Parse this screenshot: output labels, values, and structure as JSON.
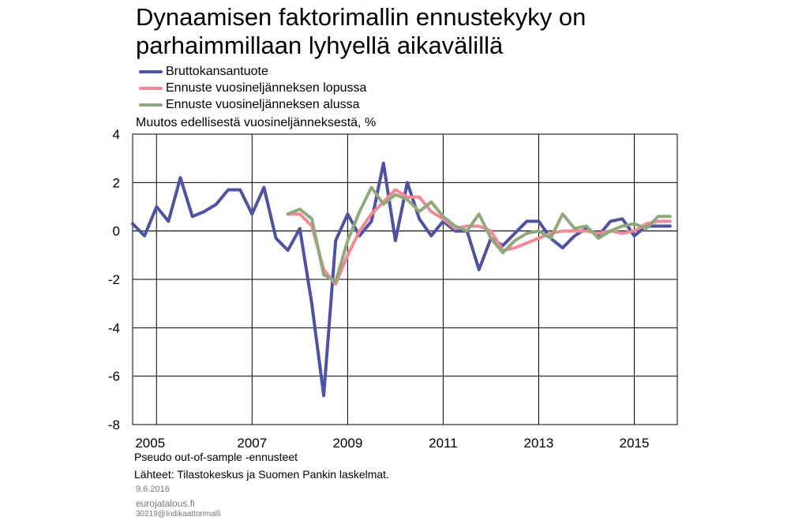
{
  "title_lines": [
    "Dynaamisen faktorimallin ennustekyky on",
    "parhaimmillaan lyhyellä aikavälillä"
  ],
  "footer": {
    "note": "Pseudo out-of-sample -ennusteet",
    "source": "Lähteet: Tilastokeskus ja Suomen Pankin laskelmat.",
    "date": "9.6.2016",
    "site": "eurojatalous.fi",
    "code": "30219@Indikaattorimalli"
  },
  "chart_data": {
    "type": "line",
    "title": "Dynaamisen faktorimallin ennustekyky on parhaimmillaan lyhyellä aikavälillä",
    "ylabel": "Muutos edellisestä vuosineljänneksestä, %",
    "xlabel": "",
    "ylim": [
      -8,
      4
    ],
    "yticks": [
      4,
      2,
      0,
      -2,
      -4,
      -6,
      -8
    ],
    "xlim": [
      2004.5,
      2015.9
    ],
    "xticks": [
      2005,
      2007,
      2009,
      2011,
      2013,
      2015
    ],
    "xtick_labels": [
      "2005",
      "2007",
      "2009",
      "2011",
      "2013",
      "2015"
    ],
    "grid": true,
    "legend_position": "top-left",
    "series": [
      {
        "name": "Bruttokansantuote",
        "color": "#4f52a3",
        "x": [
          2004.5,
          2004.75,
          2005.0,
          2005.25,
          2005.5,
          2005.75,
          2006.0,
          2006.25,
          2006.5,
          2006.75,
          2007.0,
          2007.25,
          2007.5,
          2007.75,
          2008.0,
          2008.25,
          2008.5,
          2008.75,
          2009.0,
          2009.25,
          2009.5,
          2009.75,
          2010.0,
          2010.25,
          2010.5,
          2010.75,
          2011.0,
          2011.25,
          2011.5,
          2011.75,
          2012.0,
          2012.25,
          2012.5,
          2012.75,
          2013.0,
          2013.25,
          2013.5,
          2013.75,
          2014.0,
          2014.25,
          2014.5,
          2014.75,
          2015.0,
          2015.25,
          2015.5,
          2015.75
        ],
        "y": [
          0.3,
          -0.2,
          1.0,
          0.4,
          2.2,
          0.6,
          0.8,
          1.1,
          1.7,
          1.7,
          0.7,
          1.8,
          -0.3,
          -0.8,
          0.1,
          -3.0,
          -6.8,
          -0.4,
          0.7,
          -0.2,
          0.4,
          2.8,
          -0.4,
          2.0,
          0.5,
          -0.2,
          0.4,
          0.0,
          0.0,
          -1.6,
          -0.3,
          -0.6,
          -0.1,
          0.4,
          0.4,
          -0.3,
          -0.7,
          -0.2,
          0.1,
          -0.2,
          0.4,
          0.5,
          -0.2,
          0.2,
          0.2,
          0.2
        ]
      },
      {
        "name": "Ennuste vuosineljänneksen lopussa",
        "color": "#f08a95",
        "x": [
          2007.75,
          2008.0,
          2008.25,
          2008.5,
          2008.75,
          2009.0,
          2009.25,
          2009.5,
          2009.75,
          2010.0,
          2010.25,
          2010.5,
          2010.75,
          2011.0,
          2011.25,
          2011.5,
          2011.75,
          2012.0,
          2012.25,
          2012.5,
          2012.75,
          2013.0,
          2013.25,
          2013.5,
          2013.75,
          2014.0,
          2014.25,
          2014.5,
          2014.75,
          2015.0,
          2015.25,
          2015.5,
          2015.75
        ],
        "y": [
          0.7,
          0.7,
          0.2,
          -1.6,
          -2.2,
          -1.0,
          0.0,
          0.7,
          1.2,
          1.7,
          1.4,
          1.4,
          0.8,
          0.5,
          0.1,
          0.2,
          0.2,
          0.0,
          -0.8,
          -0.7,
          -0.5,
          -0.3,
          -0.1,
          0.0,
          0.0,
          0.0,
          -0.1,
          0.0,
          -0.1,
          0.0,
          0.3,
          0.4,
          0.4
        ]
      },
      {
        "name": "Ennuste vuosineljänneksen alussa",
        "color": "#8fa97c",
        "x": [
          2007.75,
          2008.0,
          2008.25,
          2008.5,
          2008.75,
          2009.0,
          2009.25,
          2009.5,
          2009.75,
          2010.0,
          2010.25,
          2010.5,
          2010.75,
          2011.0,
          2011.25,
          2011.5,
          2011.75,
          2012.0,
          2012.25,
          2012.5,
          2012.75,
          2013.0,
          2013.25,
          2013.5,
          2013.75,
          2014.0,
          2014.25,
          2014.5,
          2014.75,
          2015.0,
          2015.25,
          2015.5,
          2015.75
        ],
        "y": [
          0.7,
          0.9,
          0.5,
          -1.8,
          -2.1,
          -0.4,
          0.8,
          1.8,
          1.1,
          1.5,
          1.3,
          0.8,
          1.2,
          0.6,
          0.2,
          0.0,
          0.7,
          -0.3,
          -0.9,
          -0.4,
          -0.1,
          0.0,
          -0.3,
          0.7,
          0.1,
          0.2,
          -0.3,
          0.0,
          0.2,
          0.3,
          0.1,
          0.6,
          0.6
        ]
      }
    ]
  }
}
